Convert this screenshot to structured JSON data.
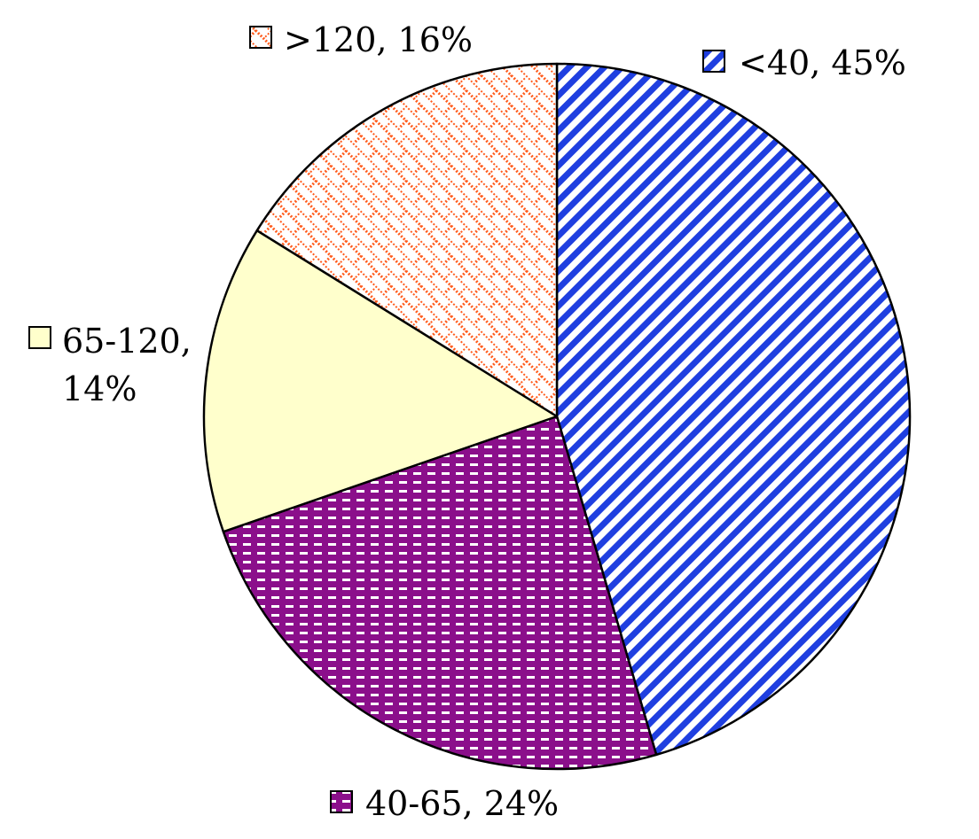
{
  "chart_data": {
    "type": "pie",
    "title": "",
    "slices": [
      {
        "key": "lt40",
        "label": "<40",
        "value": 45,
        "text_line1": "<40, 45%",
        "text_line2": "",
        "pattern": "diagonal",
        "color": "#1f3fe0",
        "bg": "#ffffff"
      },
      {
        "key": "r40_65",
        "label": "40-65",
        "value": 24,
        "text_line1": "40-65, 24%",
        "text_line2": "",
        "pattern": "dashes",
        "color": "#8b0f8b",
        "bg": "#ffffff"
      },
      {
        "key": "r65_120",
        "label": "65-120",
        "value": 14,
        "text_line1": "65-120,",
        "text_line2": "14%",
        "pattern": "solid",
        "color": "#ffffcc",
        "bg": "#ffffcc"
      },
      {
        "key": "gt120",
        "label": ">120",
        "value": 16,
        "text_line1": ">120, 16%",
        "text_line2": "",
        "pattern": "brick",
        "color": "#ff5a1a",
        "bg": "#ffffff"
      }
    ],
    "legend_placement": "outside-labels"
  }
}
